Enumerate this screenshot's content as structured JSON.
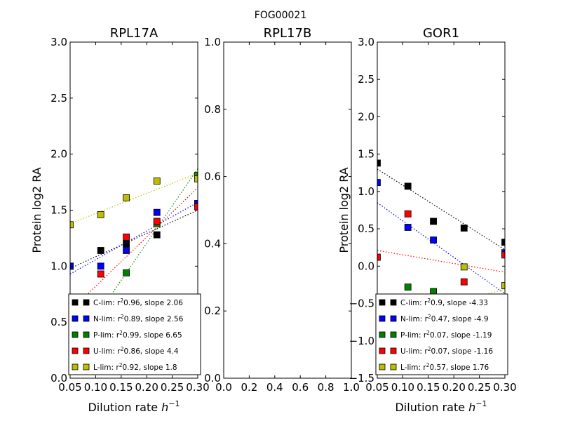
{
  "figure": {
    "suptitle": "FOG00021"
  },
  "series_styles": [
    {
      "key": "C",
      "color": "#000000"
    },
    {
      "key": "N",
      "color": "#0000ff"
    },
    {
      "key": "P",
      "color": "#008000"
    },
    {
      "key": "U",
      "color": "#ff0000"
    },
    {
      "key": "L",
      "color": "#bfbf00"
    }
  ],
  "chart_data": [
    {
      "type": "scatter",
      "title": "RPL17A",
      "xlabel": "Dilution rate",
      "xlabel_unit": "h",
      "xlabel_unit_exp": "−1",
      "ylabel": "Protein log2 RA",
      "xlim": [
        0.05,
        0.3
      ],
      "ylim": [
        0.0,
        3.0
      ],
      "xticks": [
        "0.05",
        "0.10",
        "0.15",
        "0.20",
        "0.25",
        "0.30"
      ],
      "yticks": [
        "0.0",
        "0.5",
        "1.0",
        "1.5",
        "2.0",
        "2.5",
        "3.0"
      ],
      "legend_position": "lower-right",
      "series": [
        {
          "key": "C",
          "name": "C-lim",
          "r2": "0.96",
          "slope": "2.06",
          "x": [
            0.05,
            0.11,
            0.16,
            0.22,
            0.3
          ],
          "y": [
            1.0,
            1.14,
            1.2,
            1.28,
            1.56
          ],
          "fit": [
            [
              0.05,
              0.98
            ],
            [
              0.3,
              1.5
            ]
          ]
        },
        {
          "key": "N",
          "name": "N-lim",
          "r2": "0.89",
          "slope": "2.56",
          "x": [
            0.05,
            0.11,
            0.16,
            0.22,
            0.3
          ],
          "y": [
            1.0,
            1.0,
            1.14,
            1.48,
            1.56
          ],
          "fit": [
            [
              0.05,
              0.93
            ],
            [
              0.3,
              1.57
            ]
          ]
        },
        {
          "key": "P",
          "name": "P-lim",
          "r2": "0.99",
          "slope": "6.65",
          "x": [
            0.16,
            0.22,
            0.3
          ],
          "y": [
            0.94,
            1.38,
            1.81
          ],
          "fit": [
            [
              0.05,
              0.21
            ],
            [
              0.3,
              1.87
            ]
          ]
        },
        {
          "key": "U",
          "name": "U-lim",
          "r2": "0.86",
          "slope": "4.4",
          "x": [
            0.11,
            0.16,
            0.22,
            0.3
          ],
          "y": [
            0.93,
            1.26,
            1.4,
            1.53
          ],
          "fit": [
            [
              0.05,
              0.6
            ],
            [
              0.3,
              1.7
            ]
          ]
        },
        {
          "key": "L",
          "name": "L-lim",
          "r2": "0.92",
          "slope": "1.8",
          "x": [
            0.05,
            0.11,
            0.16,
            0.22,
            0.3
          ],
          "y": [
            1.37,
            1.46,
            1.61,
            1.76,
            1.78
          ],
          "fit": [
            [
              0.05,
              1.38
            ],
            [
              0.3,
              1.83
            ]
          ]
        }
      ]
    },
    {
      "type": "scatter",
      "title": "RPL17B",
      "xlim": [
        0.0,
        1.0
      ],
      "ylim": [
        0.0,
        1.0
      ],
      "xticks": [
        "0.0",
        "0.2",
        "0.4",
        "0.6",
        "0.8",
        "1.0"
      ],
      "yticks": [
        "0.0",
        "0.2",
        "0.4",
        "0.6",
        "0.8",
        "1.0"
      ],
      "series": []
    },
    {
      "type": "scatter",
      "title": "GOR1",
      "xlabel": "Dilution rate",
      "xlabel_unit": "h",
      "xlabel_unit_exp": "−1",
      "ylabel": "Protein log2 RA",
      "xlim": [
        0.05,
        0.3
      ],
      "ylim": [
        -1.5,
        3.0
      ],
      "xticks": [
        "0.05",
        "0.10",
        "0.15",
        "0.20",
        "0.25",
        "0.30"
      ],
      "yticks": [
        "−1.5",
        "−1.0",
        "−0.5",
        "0.0",
        "0.5",
        "1.0",
        "1.5",
        "2.0",
        "2.5",
        "3.0"
      ],
      "legend_position": "lower-right",
      "series": [
        {
          "key": "C",
          "name": "C-lim",
          "r2": "0.9",
          "slope": "-4.33",
          "x": [
            0.05,
            0.11,
            0.16,
            0.22,
            0.3
          ],
          "y": [
            1.38,
            1.07,
            0.6,
            0.51,
            0.32
          ],
          "fit": [
            [
              0.05,
              1.3
            ],
            [
              0.3,
              0.22
            ]
          ]
        },
        {
          "key": "N",
          "name": "N-lim",
          "r2": "0.47",
          "slope": "-4.9",
          "x": [
            0.05,
            0.11,
            0.16,
            0.3
          ],
          "y": [
            1.12,
            0.52,
            0.35,
            0.18
          ],
          "fit": [
            [
              0.05,
              0.85
            ],
            [
              0.3,
              -0.37
            ]
          ]
        },
        {
          "key": "P",
          "name": "P-lim",
          "r2": "0.07",
          "slope": "-1.19",
          "x": [
            0.11,
            0.16,
            0.3
          ],
          "y": [
            -0.28,
            -0.34,
            -1.22
          ],
          "fit": [
            [
              0.05,
              -0.4
            ],
            [
              0.3,
              -0.7
            ]
          ]
        },
        {
          "key": "U",
          "name": "U-lim",
          "r2": "0.07",
          "slope": "-1.16",
          "x": [
            0.05,
            0.11,
            0.22,
            0.3
          ],
          "y": [
            0.12,
            0.7,
            -0.21,
            0.15
          ],
          "fit": [
            [
              0.05,
              0.21
            ],
            [
              0.3,
              -0.08
            ]
          ]
        },
        {
          "key": "L",
          "name": "L-lim",
          "r2": "0.57",
          "slope": "1.76",
          "x": [
            0.22,
            0.3
          ],
          "y": [
            -0.01,
            -0.26
          ],
          "fit": [
            [
              0.05,
              -0.75
            ],
            [
              0.3,
              -0.31
            ]
          ]
        }
      ]
    }
  ]
}
